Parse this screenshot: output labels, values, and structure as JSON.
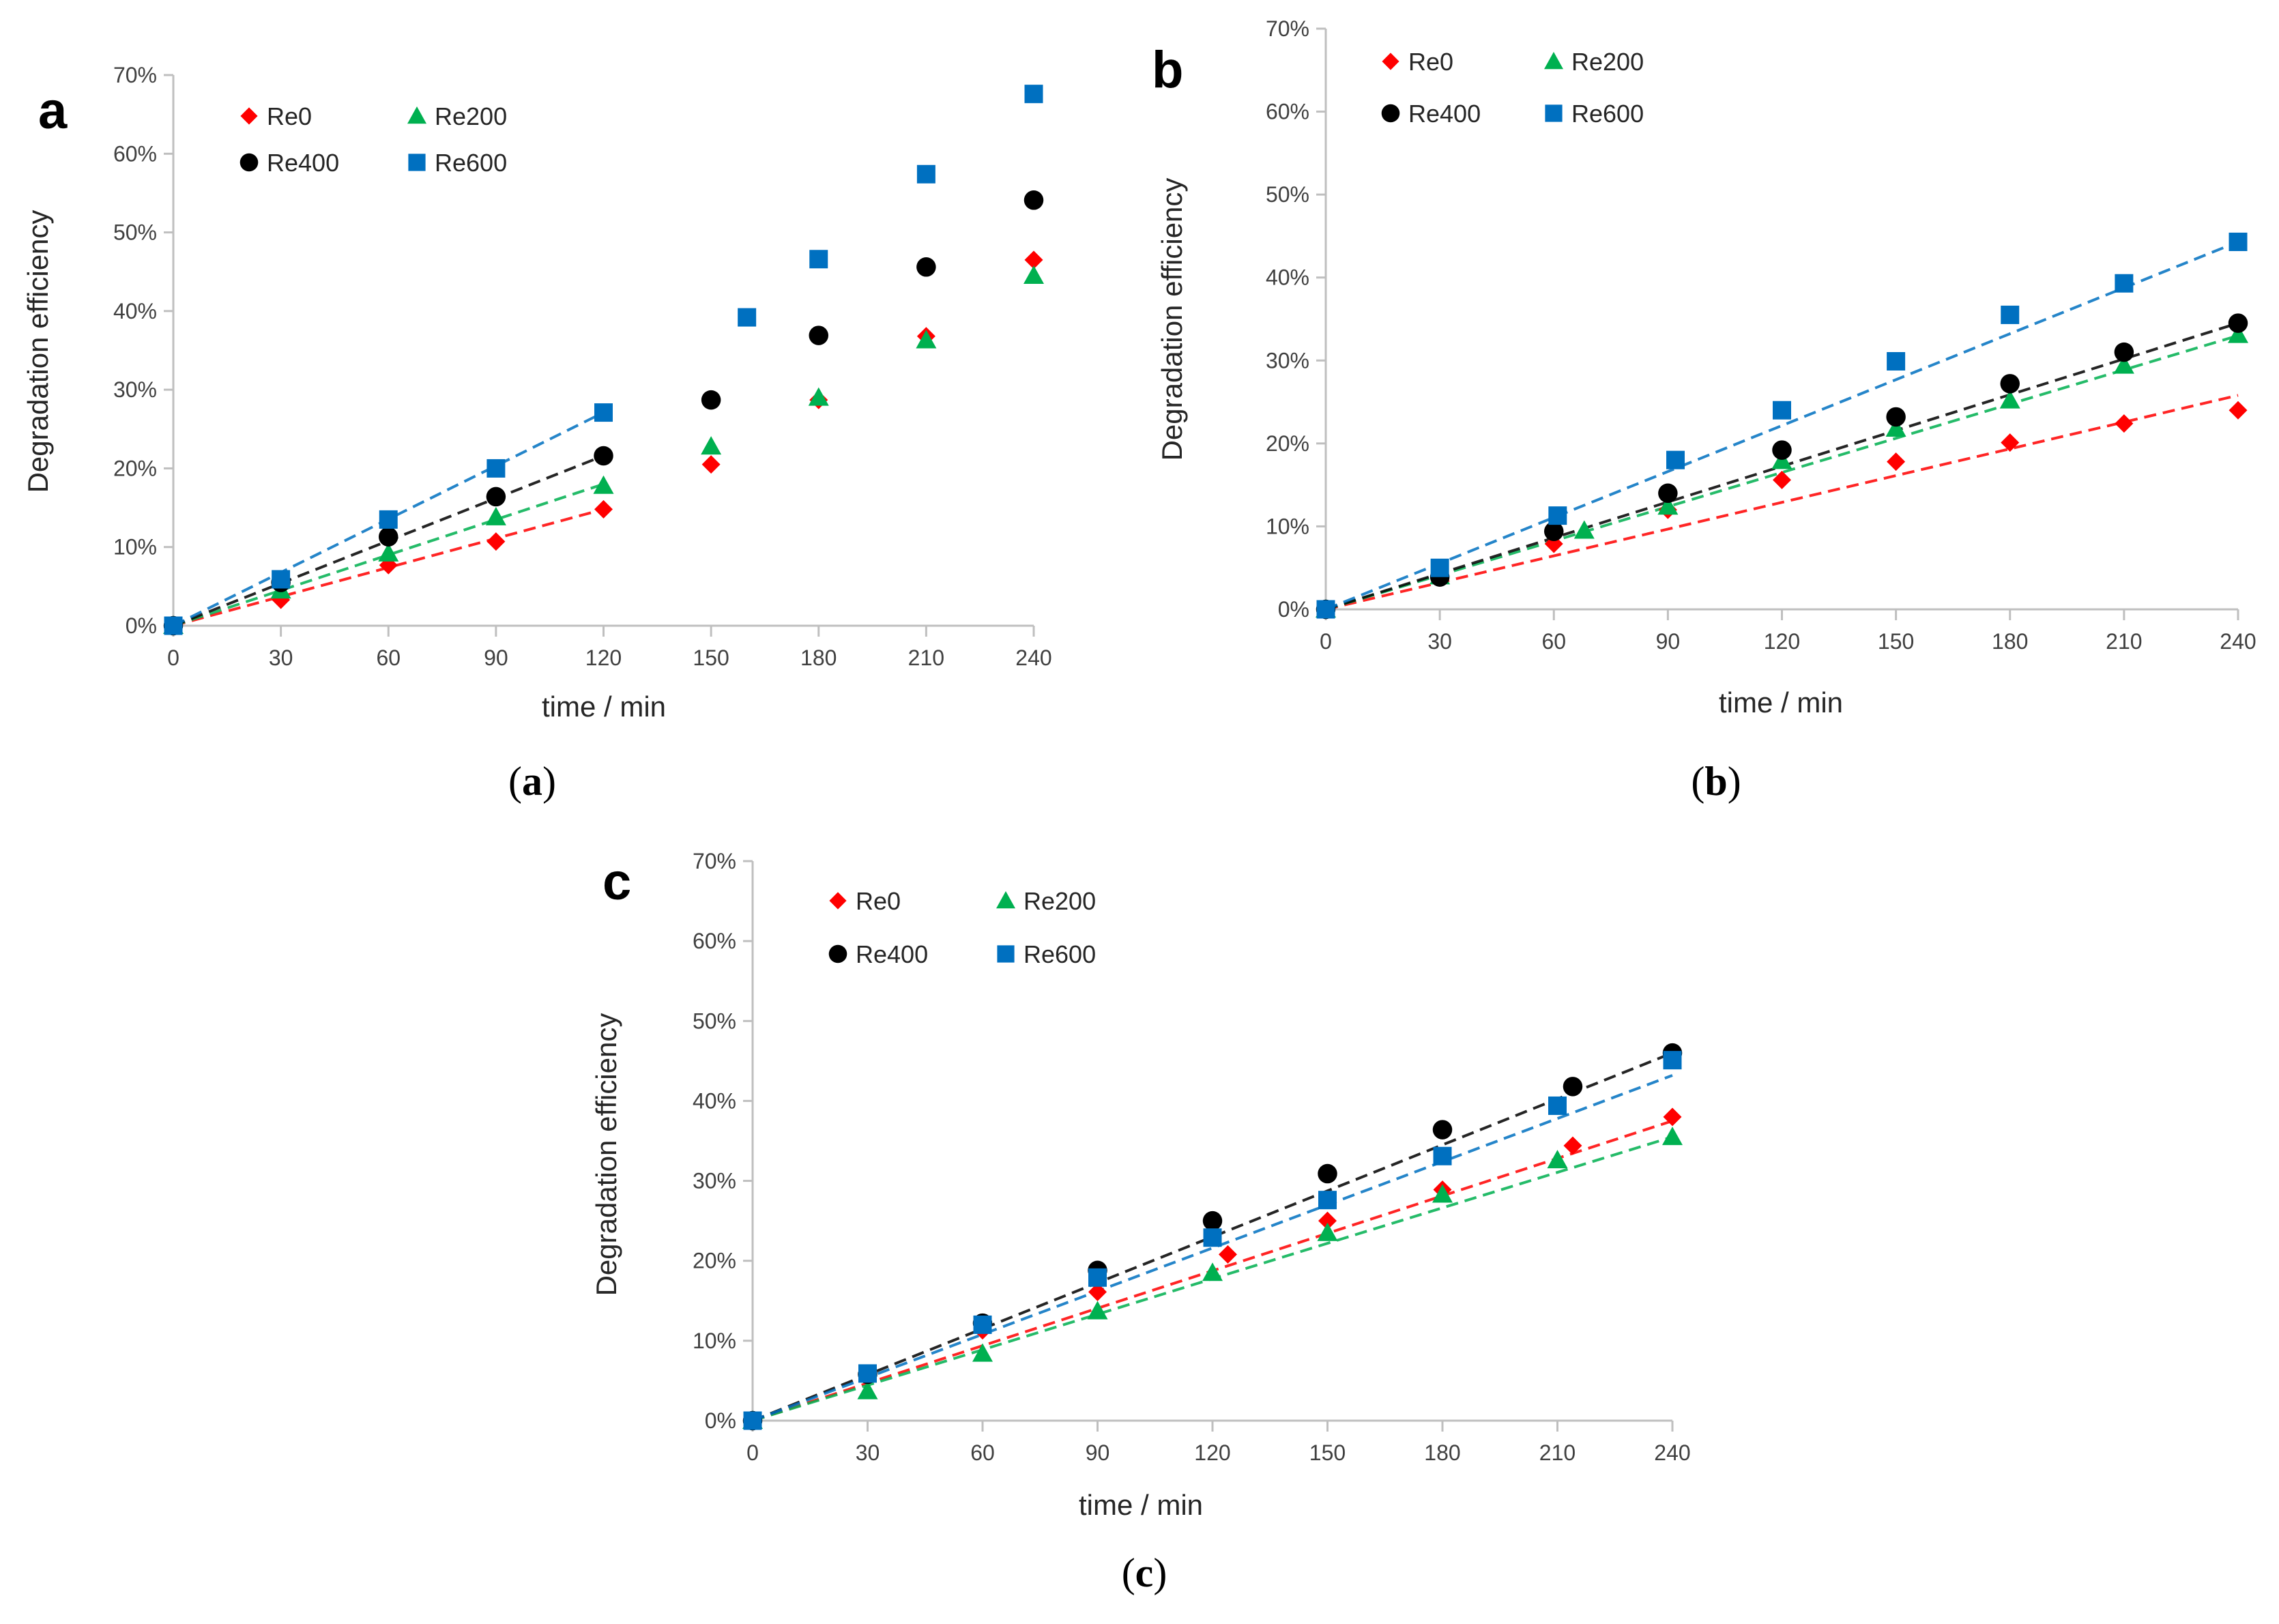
{
  "figure": {
    "y_tick_format": "percent",
    "series_styles": [
      {
        "name": "Re0",
        "marker": "diamond",
        "color": "#ff0000"
      },
      {
        "name": "Re200",
        "marker": "triangle",
        "color": "#00b050"
      },
      {
        "name": "Re400",
        "marker": "circle",
        "color": "#000000"
      },
      {
        "name": "Re600",
        "marker": "square",
        "color": "#0070c0"
      }
    ]
  },
  "chart_data": [
    {
      "type": "scatter",
      "panel_letter": "a",
      "caption_open": "(",
      "caption_letter": "a",
      "caption_close": ")",
      "xlabel": "time / min",
      "ylabel": "Degradation efficiency",
      "xlim": [
        0,
        240
      ],
      "ylim": [
        0,
        70
      ],
      "xticks": [
        0,
        30,
        60,
        90,
        120,
        150,
        180,
        210,
        240
      ],
      "yticks": [
        0,
        10,
        20,
        30,
        40,
        50,
        60,
        70
      ],
      "legend": [
        "Re0",
        "Re200",
        "Re400",
        "Re600"
      ],
      "series": [
        {
          "name": "Re0",
          "x": [
            0,
            30,
            60,
            90,
            120,
            150,
            180,
            210,
            240
          ],
          "y": [
            0,
            3.3,
            7.7,
            10.7,
            14.8,
            20.5,
            28.7,
            36.8,
            46.5
          ],
          "fit": {
            "x0": 0,
            "x1": 120,
            "y1": 14.8
          }
        },
        {
          "name": "Re200",
          "x": [
            0,
            30,
            60,
            90,
            120,
            150,
            180,
            210,
            240
          ],
          "y": [
            0,
            4.5,
            9.2,
            13.8,
            17.8,
            22.8,
            29.0,
            36.3,
            44.5
          ],
          "fit": {
            "x0": 0,
            "x1": 120,
            "y1": 18.0
          }
        },
        {
          "name": "Re400",
          "x": [
            0,
            30,
            60,
            90,
            120,
            150,
            180,
            210,
            240
          ],
          "y": [
            0,
            5.5,
            11.3,
            16.4,
            21.6,
            28.7,
            36.9,
            45.6,
            54.1
          ],
          "fit": {
            "x0": 0,
            "x1": 120,
            "y1": 21.6
          }
        },
        {
          "name": "Re600",
          "x": [
            0,
            30,
            60,
            90,
            120,
            160,
            180,
            210,
            240
          ],
          "y": [
            0,
            5.9,
            13.5,
            20.0,
            27.1,
            39.2,
            46.6,
            57.4,
            67.6
          ],
          "fit": {
            "x0": 0,
            "x1": 120,
            "y1": 27.1
          }
        }
      ]
    },
    {
      "type": "scatter",
      "panel_letter": "b",
      "caption_open": "(",
      "caption_letter": "b",
      "caption_close": ")",
      "xlabel": "time / min",
      "ylabel": "Degradation efficiency",
      "xlim": [
        0,
        240
      ],
      "ylim": [
        0,
        70
      ],
      "xticks": [
        0,
        30,
        60,
        90,
        120,
        150,
        180,
        210,
        240
      ],
      "yticks": [
        0,
        10,
        20,
        30,
        40,
        50,
        60,
        70
      ],
      "legend": [
        "Re0",
        "Re200",
        "Re400",
        "Re600"
      ],
      "series": [
        {
          "name": "Re0",
          "x": [
            0,
            30,
            60,
            90,
            120,
            150,
            180,
            210,
            240
          ],
          "y": [
            0,
            3.8,
            7.9,
            12.0,
            15.6,
            17.8,
            20.1,
            22.4,
            24.0
          ],
          "fit": {
            "x0": 0,
            "x1": 240,
            "y1": 25.8
          }
        },
        {
          "name": "Re200",
          "x": [
            0,
            30,
            68,
            90,
            120,
            150,
            180,
            210,
            240
          ],
          "y": [
            0,
            4.0,
            9.5,
            12.4,
            17.9,
            21.8,
            25.2,
            29.4,
            33.1
          ],
          "fit": {
            "x0": 0,
            "x1": 240,
            "y1": 33.0
          }
        },
        {
          "name": "Re400",
          "x": [
            0,
            30,
            60,
            90,
            120,
            150,
            180,
            210,
            240
          ],
          "y": [
            0,
            3.9,
            9.4,
            14.0,
            19.2,
            23.2,
            27.2,
            31.0,
            34.5
          ],
          "fit": {
            "x0": 0,
            "x1": 240,
            "y1": 34.5
          }
        },
        {
          "name": "Re600",
          "x": [
            0,
            30,
            61,
            92,
            120,
            150,
            180,
            210,
            240
          ],
          "y": [
            0,
            5.0,
            11.3,
            18.0,
            24.0,
            29.9,
            35.5,
            39.3,
            44.3
          ],
          "fit": {
            "x0": 0,
            "x1": 240,
            "y1": 44.3
          }
        }
      ]
    },
    {
      "type": "scatter",
      "panel_letter": "c",
      "caption_open": "(",
      "caption_letter": "c",
      "caption_close": ")",
      "xlabel": "time / min",
      "ylabel": "Degradation efficiency",
      "xlim": [
        0,
        240
      ],
      "ylim": [
        0,
        70
      ],
      "xticks": [
        0,
        30,
        60,
        90,
        120,
        150,
        180,
        210,
        240
      ],
      "yticks": [
        0,
        10,
        20,
        30,
        40,
        50,
        60,
        70
      ],
      "legend": [
        "Re0",
        "Re200",
        "Re400",
        "Re600"
      ],
      "series": [
        {
          "name": "Re0",
          "x": [
            0,
            30,
            60,
            90,
            124,
            150,
            180,
            214,
            240
          ],
          "y": [
            0,
            5.5,
            11.3,
            16.1,
            20.8,
            25.0,
            28.9,
            34.4,
            38.0
          ],
          "fit": {
            "x0": 0,
            "x1": 240,
            "y1": 37.5
          }
        },
        {
          "name": "Re200",
          "x": [
            0,
            30,
            60,
            90,
            120,
            150,
            180,
            210,
            240
          ],
          "y": [
            0,
            3.7,
            8.4,
            13.7,
            18.5,
            23.5,
            28.3,
            32.6,
            35.5
          ],
          "fit": {
            "x0": 0,
            "x1": 240,
            "y1": 35.5
          }
        },
        {
          "name": "Re400",
          "x": [
            0,
            30,
            60,
            90,
            120,
            150,
            180,
            214,
            240
          ],
          "y": [
            0,
            5.8,
            12.2,
            18.8,
            25.0,
            30.9,
            36.4,
            41.8,
            46.0
          ],
          "fit": {
            "x0": 0,
            "x1": 240,
            "y1": 46.0
          }
        },
        {
          "name": "Re600",
          "x": [
            0,
            30,
            60,
            90,
            120,
            150,
            180,
            210,
            240
          ],
          "y": [
            0,
            5.9,
            12.0,
            17.9,
            22.9,
            27.6,
            33.1,
            39.4,
            45.1
          ],
          "fit": {
            "x0": 0,
            "x1": 240,
            "y1": 43.2
          }
        }
      ]
    }
  ]
}
